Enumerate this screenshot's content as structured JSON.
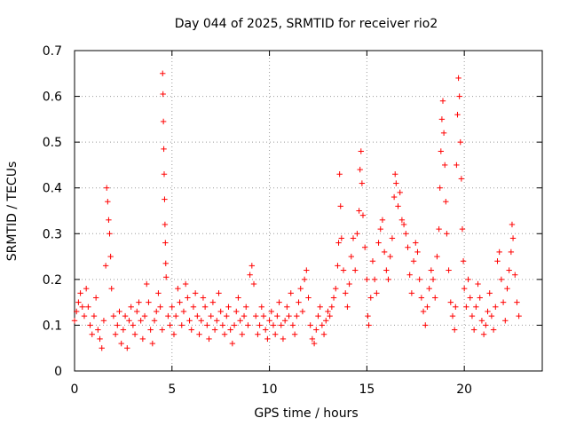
{
  "chart_data": {
    "type": "scatter",
    "title": "Day 044 of 2025, SRMTID for receiver rio2",
    "xlabel": "GPS time / hours",
    "ylabel": "SRMTID / TECUs",
    "xlim": [
      0,
      24
    ],
    "ylim": [
      0,
      0.7
    ],
    "x_ticks": [
      0,
      5,
      10,
      15,
      20
    ],
    "y_ticks": [
      0,
      0.1,
      0.2,
      0.3,
      0.4,
      0.5,
      0.6,
      0.7
    ],
    "x_tick_labels": [
      "0",
      "5",
      "10",
      "15",
      "20"
    ],
    "y_tick_labels": [
      "0",
      "0.1",
      "0.2",
      "0.3",
      "0.4",
      "0.5",
      "0.6",
      "0.7"
    ],
    "grid": true,
    "marker": "+",
    "marker_color": "#ff0000",
    "series": [
      {
        "name": "rio2",
        "points": [
          [
            0.0,
            0.11
          ],
          [
            0.1,
            0.13
          ],
          [
            0.2,
            0.15
          ],
          [
            0.3,
            0.17
          ],
          [
            0.4,
            0.14
          ],
          [
            0.5,
            0.12
          ],
          [
            0.6,
            0.18
          ],
          [
            0.7,
            0.14
          ],
          [
            0.8,
            0.1
          ],
          [
            0.9,
            0.08
          ],
          [
            1.0,
            0.12
          ],
          [
            1.1,
            0.16
          ],
          [
            1.2,
            0.09
          ],
          [
            1.3,
            0.07
          ],
          [
            1.4,
            0.05
          ],
          [
            1.5,
            0.11
          ],
          [
            1.6,
            0.23
          ],
          [
            1.65,
            0.4
          ],
          [
            1.7,
            0.37
          ],
          [
            1.75,
            0.33
          ],
          [
            1.8,
            0.3
          ],
          [
            1.85,
            0.25
          ],
          [
            1.9,
            0.18
          ],
          [
            2.0,
            0.12
          ],
          [
            2.1,
            0.08
          ],
          [
            2.2,
            0.1
          ],
          [
            2.3,
            0.13
          ],
          [
            2.4,
            0.06
          ],
          [
            2.5,
            0.09
          ],
          [
            2.6,
            0.12
          ],
          [
            2.7,
            0.05
          ],
          [
            2.8,
            0.11
          ],
          [
            2.9,
            0.14
          ],
          [
            3.0,
            0.1
          ],
          [
            3.1,
            0.08
          ],
          [
            3.2,
            0.13
          ],
          [
            3.3,
            0.15
          ],
          [
            3.4,
            0.11
          ],
          [
            3.5,
            0.07
          ],
          [
            3.6,
            0.12
          ],
          [
            3.7,
            0.19
          ],
          [
            3.8,
            0.15
          ],
          [
            3.9,
            0.09
          ],
          [
            4.0,
            0.06
          ],
          [
            4.1,
            0.11
          ],
          [
            4.2,
            0.13
          ],
          [
            4.3,
            0.17
          ],
          [
            4.4,
            0.14
          ],
          [
            4.5,
            0.09
          ],
          [
            4.52,
            0.65
          ],
          [
            4.54,
            0.605
          ],
          [
            4.56,
            0.545
          ],
          [
            4.58,
            0.485
          ],
          [
            4.6,
            0.43
          ],
          [
            4.62,
            0.375
          ],
          [
            4.64,
            0.32
          ],
          [
            4.66,
            0.28
          ],
          [
            4.68,
            0.235
          ],
          [
            4.7,
            0.205
          ],
          [
            4.8,
            0.12
          ],
          [
            4.9,
            0.1
          ],
          [
            5.0,
            0.14
          ],
          [
            5.1,
            0.08
          ],
          [
            5.2,
            0.12
          ],
          [
            5.3,
            0.18
          ],
          [
            5.4,
            0.15
          ],
          [
            5.5,
            0.1
          ],
          [
            5.6,
            0.13
          ],
          [
            5.7,
            0.19
          ],
          [
            5.8,
            0.16
          ],
          [
            5.9,
            0.11
          ],
          [
            6.0,
            0.09
          ],
          [
            6.1,
            0.14
          ],
          [
            6.2,
            0.17
          ],
          [
            6.3,
            0.12
          ],
          [
            6.4,
            0.08
          ],
          [
            6.5,
            0.11
          ],
          [
            6.6,
            0.16
          ],
          [
            6.7,
            0.14
          ],
          [
            6.8,
            0.1
          ],
          [
            6.9,
            0.07
          ],
          [
            7.0,
            0.12
          ],
          [
            7.1,
            0.15
          ],
          [
            7.2,
            0.09
          ],
          [
            7.3,
            0.11
          ],
          [
            7.4,
            0.17
          ],
          [
            7.5,
            0.13
          ],
          [
            7.6,
            0.1
          ],
          [
            7.7,
            0.08
          ],
          [
            7.8,
            0.12
          ],
          [
            7.9,
            0.14
          ],
          [
            8.0,
            0.09
          ],
          [
            8.1,
            0.06
          ],
          [
            8.2,
            0.1
          ],
          [
            8.3,
            0.13
          ],
          [
            8.4,
            0.16
          ],
          [
            8.5,
            0.11
          ],
          [
            8.6,
            0.08
          ],
          [
            8.7,
            0.12
          ],
          [
            8.8,
            0.14
          ],
          [
            8.9,
            0.1
          ],
          [
            9.0,
            0.21
          ],
          [
            9.1,
            0.23
          ],
          [
            9.2,
            0.19
          ],
          [
            9.3,
            0.12
          ],
          [
            9.4,
            0.08
          ],
          [
            9.5,
            0.1
          ],
          [
            9.6,
            0.14
          ],
          [
            9.7,
            0.12
          ],
          [
            9.8,
            0.09
          ],
          [
            9.9,
            0.07
          ],
          [
            10.0,
            0.11
          ],
          [
            10.1,
            0.13
          ],
          [
            10.2,
            0.1
          ],
          [
            10.3,
            0.08
          ],
          [
            10.4,
            0.12
          ],
          [
            10.5,
            0.15
          ],
          [
            10.6,
            0.1
          ],
          [
            10.7,
            0.07
          ],
          [
            10.8,
            0.11
          ],
          [
            10.9,
            0.14
          ],
          [
            11.0,
            0.12
          ],
          [
            11.1,
            0.17
          ],
          [
            11.2,
            0.1
          ],
          [
            11.3,
            0.08
          ],
          [
            11.4,
            0.12
          ],
          [
            11.5,
            0.15
          ],
          [
            11.6,
            0.18
          ],
          [
            11.7,
            0.13
          ],
          [
            11.8,
            0.2
          ],
          [
            11.9,
            0.22
          ],
          [
            12.0,
            0.16
          ],
          [
            12.1,
            0.1
          ],
          [
            12.2,
            0.07
          ],
          [
            12.3,
            0.06
          ],
          [
            12.4,
            0.09
          ],
          [
            12.5,
            0.12
          ],
          [
            12.6,
            0.14
          ],
          [
            12.7,
            0.1
          ],
          [
            12.8,
            0.08
          ],
          [
            12.9,
            0.11
          ],
          [
            13.0,
            0.13
          ],
          [
            13.1,
            0.12
          ],
          [
            13.2,
            0.14
          ],
          [
            13.3,
            0.16
          ],
          [
            13.4,
            0.18
          ],
          [
            13.5,
            0.23
          ],
          [
            13.55,
            0.28
          ],
          [
            13.6,
            0.43
          ],
          [
            13.65,
            0.36
          ],
          [
            13.7,
            0.29
          ],
          [
            13.8,
            0.22
          ],
          [
            13.9,
            0.17
          ],
          [
            14.0,
            0.14
          ],
          [
            14.1,
            0.19
          ],
          [
            14.2,
            0.25
          ],
          [
            14.3,
            0.29
          ],
          [
            14.4,
            0.22
          ],
          [
            14.5,
            0.3
          ],
          [
            14.6,
            0.35
          ],
          [
            14.65,
            0.44
          ],
          [
            14.7,
            0.48
          ],
          [
            14.75,
            0.41
          ],
          [
            14.8,
            0.34
          ],
          [
            14.9,
            0.27
          ],
          [
            15.0,
            0.2
          ],
          [
            15.05,
            0.12
          ],
          [
            15.1,
            0.1
          ],
          [
            15.2,
            0.16
          ],
          [
            15.3,
            0.24
          ],
          [
            15.4,
            0.2
          ],
          [
            15.5,
            0.17
          ],
          [
            15.6,
            0.28
          ],
          [
            15.7,
            0.31
          ],
          [
            15.8,
            0.33
          ],
          [
            15.9,
            0.26
          ],
          [
            16.0,
            0.22
          ],
          [
            16.1,
            0.2
          ],
          [
            16.2,
            0.25
          ],
          [
            16.3,
            0.29
          ],
          [
            16.4,
            0.38
          ],
          [
            16.45,
            0.43
          ],
          [
            16.5,
            0.41
          ],
          [
            16.6,
            0.36
          ],
          [
            16.7,
            0.39
          ],
          [
            16.8,
            0.33
          ],
          [
            16.9,
            0.32
          ],
          [
            17.0,
            0.3
          ],
          [
            17.1,
            0.27
          ],
          [
            17.2,
            0.21
          ],
          [
            17.3,
            0.17
          ],
          [
            17.4,
            0.24
          ],
          [
            17.5,
            0.28
          ],
          [
            17.6,
            0.26
          ],
          [
            17.7,
            0.2
          ],
          [
            17.8,
            0.16
          ],
          [
            17.9,
            0.13
          ],
          [
            18.0,
            0.1
          ],
          [
            18.1,
            0.14
          ],
          [
            18.2,
            0.18
          ],
          [
            18.3,
            0.22
          ],
          [
            18.4,
            0.2
          ],
          [
            18.5,
            0.16
          ],
          [
            18.6,
            0.25
          ],
          [
            18.7,
            0.31
          ],
          [
            18.75,
            0.4
          ],
          [
            18.8,
            0.48
          ],
          [
            18.85,
            0.55
          ],
          [
            18.9,
            0.59
          ],
          [
            18.95,
            0.52
          ],
          [
            19.0,
            0.45
          ],
          [
            19.05,
            0.37
          ],
          [
            19.1,
            0.3
          ],
          [
            19.2,
            0.22
          ],
          [
            19.3,
            0.15
          ],
          [
            19.4,
            0.12
          ],
          [
            19.5,
            0.09
          ],
          [
            19.55,
            0.14
          ],
          [
            19.6,
            0.45
          ],
          [
            19.65,
            0.56
          ],
          [
            19.7,
            0.64
          ],
          [
            19.75,
            0.6
          ],
          [
            19.8,
            0.5
          ],
          [
            19.85,
            0.42
          ],
          [
            19.9,
            0.31
          ],
          [
            19.95,
            0.24
          ],
          [
            20.0,
            0.18
          ],
          [
            20.1,
            0.14
          ],
          [
            20.2,
            0.2
          ],
          [
            20.3,
            0.16
          ],
          [
            20.4,
            0.12
          ],
          [
            20.5,
            0.09
          ],
          [
            20.6,
            0.14
          ],
          [
            20.7,
            0.19
          ],
          [
            20.8,
            0.16
          ],
          [
            20.9,
            0.11
          ],
          [
            21.0,
            0.08
          ],
          [
            21.1,
            0.1
          ],
          [
            21.2,
            0.13
          ],
          [
            21.3,
            0.17
          ],
          [
            21.4,
            0.12
          ],
          [
            21.5,
            0.09
          ],
          [
            21.6,
            0.14
          ],
          [
            21.7,
            0.24
          ],
          [
            21.8,
            0.26
          ],
          [
            21.9,
            0.2
          ],
          [
            22.0,
            0.15
          ],
          [
            22.1,
            0.11
          ],
          [
            22.2,
            0.18
          ],
          [
            22.3,
            0.22
          ],
          [
            22.4,
            0.26
          ],
          [
            22.45,
            0.32
          ],
          [
            22.5,
            0.29
          ],
          [
            22.6,
            0.21
          ],
          [
            22.7,
            0.15
          ],
          [
            22.8,
            0.12
          ]
        ]
      }
    ]
  }
}
